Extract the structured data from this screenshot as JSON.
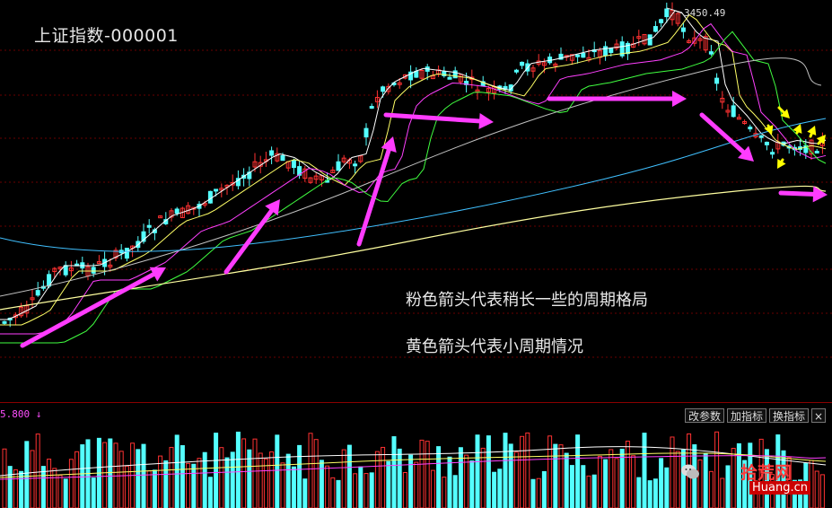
{
  "title": "上证指数-000001",
  "peak_price_label": "3450.49",
  "notes": {
    "pink": "粉色箭头代表稍长一些的周期格局",
    "yellow": "黄色箭头代表小周期情况"
  },
  "volume_panel": {
    "value_label": "5.800 ↓",
    "buttons": {
      "params": "改参数",
      "add_indicator": "加指标",
      "switch_indicator": "换指标",
      "close": "×"
    }
  },
  "watermark": {
    "site": "拾荒网",
    "domain": "Huang.cn"
  },
  "colors": {
    "background": "#000000",
    "candle_up": "#ff3232",
    "candle_down": "#54ffff",
    "pink_arrow": "#ff3cff",
    "yellow_arrow": "#ffff00",
    "ma_white": "#ffffff",
    "ma_yellow": "#ffff66",
    "ma_magenta": "#ff40ff",
    "ma_green": "#40ff40",
    "ma_gray": "#c0c0c0",
    "ma_cyan": "#40c0ff",
    "ma_long_yellow": "#ffffa0"
  },
  "icons": [
    "wechat-icon",
    "close-icon",
    "down-arrow-icon"
  ]
}
